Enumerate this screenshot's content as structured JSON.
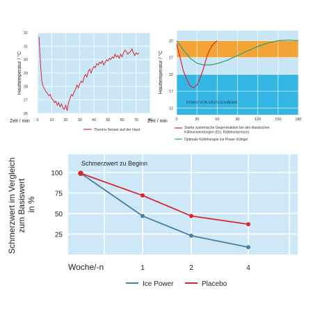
{
  "chart_data": [
    {
      "type": "line",
      "ylabel": "Hauttemperatur / °C",
      "xlabel": "Zeit / min",
      "xlim": [
        0,
        80
      ],
      "ylim": [
        26,
        32
      ],
      "xticks": [
        "0",
        "10",
        "20",
        "30",
        "40",
        "50",
        "60",
        "70",
        "80"
      ],
      "yticks": [
        "26",
        "27",
        "28",
        "29",
        "30",
        "31",
        "32"
      ],
      "grid": true,
      "legend_position": "bottom-right",
      "colors": {
        "background": "#c9e6f7",
        "grid": "#ffffff",
        "line": "#d8262e"
      },
      "series": [
        {
          "name": "Thermo-Sensor auf der Haut",
          "x": [
            1,
            2,
            3,
            4,
            5,
            6,
            7,
            8,
            9,
            10,
            11,
            12,
            13,
            14,
            15,
            16,
            17,
            18,
            19,
            20,
            21,
            22,
            23,
            24,
            25,
            26,
            27,
            28,
            29,
            30,
            31,
            32,
            33,
            34,
            35,
            36,
            37,
            38,
            39,
            40,
            41,
            42,
            43,
            44,
            45,
            46,
            47,
            48,
            49,
            50,
            51,
            52,
            53,
            54,
            55,
            56,
            57,
            58,
            59,
            60,
            61,
            62,
            63,
            64,
            65,
            66,
            67,
            68,
            69,
            70,
            71,
            72
          ],
          "y": [
            31.7,
            29.8,
            28.4,
            28.0,
            27.8,
            27.6,
            27.5,
            27.3,
            27.4,
            27.1,
            27.0,
            26.8,
            26.9,
            26.6,
            26.8,
            26.5,
            26.7,
            26.4,
            26.3,
            26.6,
            26.2,
            26.8,
            27.1,
            27.4,
            27.3,
            27.6,
            27.8,
            28.1,
            27.9,
            28.2,
            28.4,
            28.3,
            28.7,
            28.9,
            28.7,
            29.1,
            29.3,
            29.0,
            29.3,
            29.5,
            29.4,
            29.7,
            29.6,
            29.8,
            29.7,
            29.9,
            29.6,
            29.8,
            30.0,
            29.9,
            30.1,
            30.0,
            30.2,
            30.1,
            30.4,
            30.2,
            30.3,
            30.1,
            30.4,
            30.2,
            30.5,
            30.7,
            30.6,
            30.4,
            30.5,
            30.6,
            30.8,
            30.5,
            30.3,
            30.5,
            30.4,
            30.5
          ]
        }
      ]
    },
    {
      "type": "line",
      "ylabel": "Hauttemperatur / °C",
      "xlabel": "Zeit / min",
      "xlim": [
        0,
        180
      ],
      "ylim": [
        10,
        35
      ],
      "xticks": [
        "0",
        "30",
        "60",
        "90",
        "120",
        "150",
        "180"
      ],
      "yticks": [
        "12",
        "17",
        "22",
        "27",
        "32"
      ],
      "bands": [
        {
          "from": 27,
          "to": 32,
          "color": "#f4a436"
        },
        {
          "from": 10,
          "to": 22,
          "color": "#33b6e3",
          "label": "RISIKO VON KÄLTESCHÄDEN"
        }
      ],
      "grid": true,
      "legend_position": "bottom",
      "colors": {
        "background": "#c9e6f7",
        "grid": "#ffffff"
      },
      "series": [
        {
          "name": "Starke systemische Gegenreaktion bei den klassischen Kälteanwendungen (Eis, Kältekompresse)",
          "color": "#d8262e",
          "x": [
            0,
            5,
            10,
            15,
            20,
            25,
            30,
            35,
            40,
            45,
            50,
            55,
            60
          ],
          "y": [
            31,
            27,
            23,
            20.5,
            18.5,
            18,
            18.8,
            21,
            24,
            27.5,
            29.8,
            31.2,
            32
          ]
        },
        {
          "name": "Optimale Kühltherapie Ice Power Kühlgel",
          "color": "#2e9e6e",
          "x": [
            0,
            10,
            20,
            30,
            40,
            50,
            60,
            75,
            90,
            105,
            120,
            135,
            150,
            165,
            180
          ],
          "y": [
            32,
            29.2,
            26.8,
            25.3,
            24.8,
            24.8,
            25.2,
            26.2,
            27.6,
            29.0,
            30.3,
            31.3,
            32.0,
            32.2,
            32.0
          ]
        }
      ]
    },
    {
      "type": "line",
      "title": "Schmerzwert zu Beginn",
      "ylabel": "Schmerzwert im Vergleich zum Basiswert in %",
      "xlabel": "Woche/-n",
      "categories": [
        "",
        "1",
        "2",
        "4"
      ],
      "yticks": [
        "25",
        "50",
        "75",
        "100"
      ],
      "ylim": [
        0,
        100
      ],
      "grid": true,
      "legend_position": "bottom",
      "colors": {
        "background": "#cfe8f8",
        "grid": "#ffffff"
      },
      "series": [
        {
          "name": "Ice Power",
          "color": "#4a7fa0",
          "values": [
            99,
            47,
            23,
            9
          ]
        },
        {
          "name": "Placebo",
          "color": "#d8262e",
          "values": [
            99,
            72,
            47,
            37
          ]
        }
      ]
    }
  ]
}
